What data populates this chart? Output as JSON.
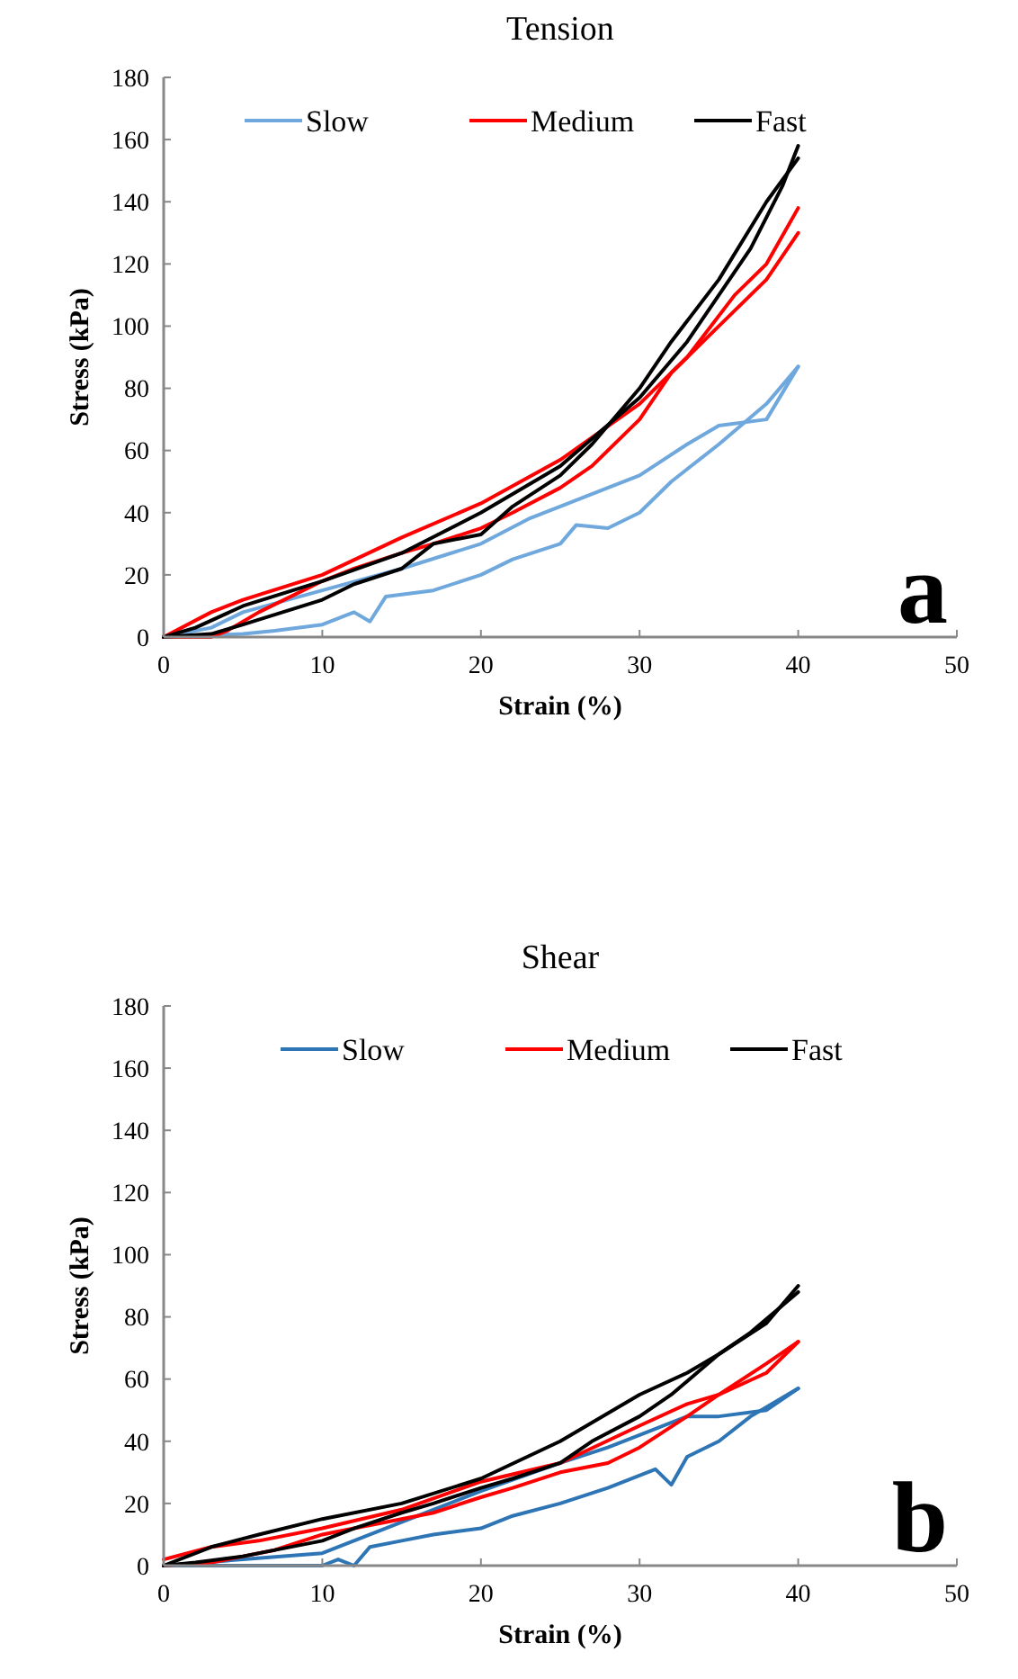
{
  "chart_data": [
    {
      "type": "line",
      "title": "Tension",
      "xlabel": "Strain (%)",
      "ylabel": "Stress (kPa)",
      "xlim": [
        0,
        50
      ],
      "ylim": [
        0,
        180
      ],
      "xticks": [
        0,
        10,
        20,
        30,
        40,
        50
      ],
      "yticks": [
        0,
        20,
        40,
        60,
        80,
        100,
        120,
        140,
        160,
        180
      ],
      "legend": "top",
      "grid": false,
      "marker": "none",
      "line_style": "solid",
      "annotations": [
        "a"
      ],
      "series": [
        {
          "name": "Slow",
          "color": "#6fa8dc",
          "x": [
            0,
            3,
            5,
            10,
            15,
            20,
            23,
            25,
            28,
            30,
            33,
            35,
            38,
            40
          ],
          "values": [
            0,
            3,
            8,
            15,
            22,
            30,
            38,
            42,
            48,
            52,
            62,
            68,
            70,
            87
          ]
        },
        {
          "color": "#6fa8dc",
          "x": [
            0,
            5,
            7,
            10,
            12,
            13,
            14,
            17,
            20,
            22,
            25,
            26,
            28,
            30,
            32,
            35,
            38,
            40
          ],
          "values": [
            0,
            1,
            2,
            4,
            8,
            5,
            13,
            15,
            20,
            25,
            30,
            36,
            35,
            40,
            50,
            62,
            75,
            87
          ]
        },
        {
          "name": "Medium",
          "color": "#ff0000",
          "x": [
            0,
            3,
            5,
            10,
            15,
            20,
            25,
            30,
            33,
            36,
            38,
            40
          ],
          "values": [
            0,
            8,
            12,
            20,
            32,
            43,
            57,
            75,
            90,
            110,
            120,
            138
          ]
        },
        {
          "color": "#ff0000",
          "x": [
            0,
            3,
            4,
            6,
            10,
            12,
            15,
            17,
            20,
            22,
            25,
            27,
            30,
            32,
            35,
            38,
            40
          ],
          "values": [
            0,
            0,
            2,
            8,
            18,
            22,
            27,
            30,
            35,
            40,
            48,
            55,
            70,
            85,
            100,
            115,
            130
          ]
        },
        {
          "name": "Fast",
          "color": "#000000",
          "x": [
            0,
            2,
            5,
            10,
            15,
            20,
            25,
            30,
            33,
            35,
            37,
            39,
            40
          ],
          "values": [
            0,
            3,
            10,
            18,
            27,
            40,
            55,
            77,
            95,
            110,
            125,
            145,
            158
          ]
        },
        {
          "color": "#000000",
          "x": [
            0,
            3,
            5,
            10,
            12,
            15,
            17,
            20,
            22,
            25,
            27,
            30,
            32,
            35,
            38,
            40
          ],
          "values": [
            0,
            1,
            4,
            12,
            17,
            22,
            30,
            33,
            42,
            52,
            62,
            80,
            95,
            115,
            140,
            154
          ]
        }
      ]
    },
    {
      "type": "line",
      "title": "Shear",
      "xlabel": "Strain (%)",
      "ylabel": "Stress (kPa)",
      "xlim": [
        0,
        50
      ],
      "ylim": [
        0,
        180
      ],
      "xticks": [
        0,
        10,
        20,
        30,
        40,
        50
      ],
      "yticks": [
        0,
        20,
        40,
        60,
        80,
        100,
        120,
        140,
        160,
        180
      ],
      "legend": "top",
      "grid": false,
      "marker": "none",
      "line_style": "solid",
      "annotations": [
        "b"
      ],
      "series": [
        {
          "name": "Slow",
          "color": "#2e75b6",
          "x": [
            0,
            5,
            10,
            15,
            20,
            25,
            28,
            30,
            33,
            35,
            38,
            40
          ],
          "values": [
            0,
            2,
            4,
            14,
            24,
            33,
            38,
            42,
            48,
            48,
            50,
            57
          ]
        },
        {
          "color": "#2e75b6",
          "x": [
            0,
            5,
            10,
            11,
            12,
            13,
            15,
            17,
            20,
            22,
            25,
            28,
            31,
            32,
            33,
            35,
            37,
            40
          ],
          "values": [
            0,
            0,
            0,
            2,
            0,
            6,
            8,
            10,
            12,
            16,
            20,
            25,
            31,
            26,
            35,
            40,
            48,
            57
          ]
        },
        {
          "name": "Medium",
          "color": "#ff0000",
          "x": [
            0,
            3,
            6,
            10,
            15,
            20,
            25,
            30,
            33,
            35,
            38,
            40
          ],
          "values": [
            2,
            6,
            8,
            12,
            18,
            27,
            33,
            45,
            52,
            55,
            65,
            72
          ]
        },
        {
          "color": "#ff0000",
          "x": [
            0,
            3,
            5,
            7,
            10,
            12,
            15,
            17,
            20,
            22,
            25,
            28,
            30,
            33,
            35,
            38,
            40
          ],
          "values": [
            0,
            1,
            3,
            5,
            10,
            12,
            15,
            17,
            22,
            25,
            30,
            33,
            38,
            48,
            55,
            62,
            72
          ]
        },
        {
          "name": "Fast",
          "color": "#000000",
          "x": [
            0,
            3,
            6,
            10,
            15,
            20,
            25,
            30,
            33,
            35,
            38,
            40
          ],
          "values": [
            0,
            6,
            10,
            15,
            20,
            28,
            40,
            55,
            62,
            68,
            78,
            90
          ]
        },
        {
          "color": "#000000",
          "x": [
            0,
            2,
            5,
            10,
            12,
            15,
            17,
            20,
            22,
            25,
            27,
            30,
            32,
            35,
            37,
            40
          ],
          "values": [
            0,
            1,
            3,
            8,
            12,
            17,
            20,
            25,
            28,
            33,
            40,
            48,
            55,
            68,
            75,
            88
          ]
        }
      ]
    }
  ]
}
